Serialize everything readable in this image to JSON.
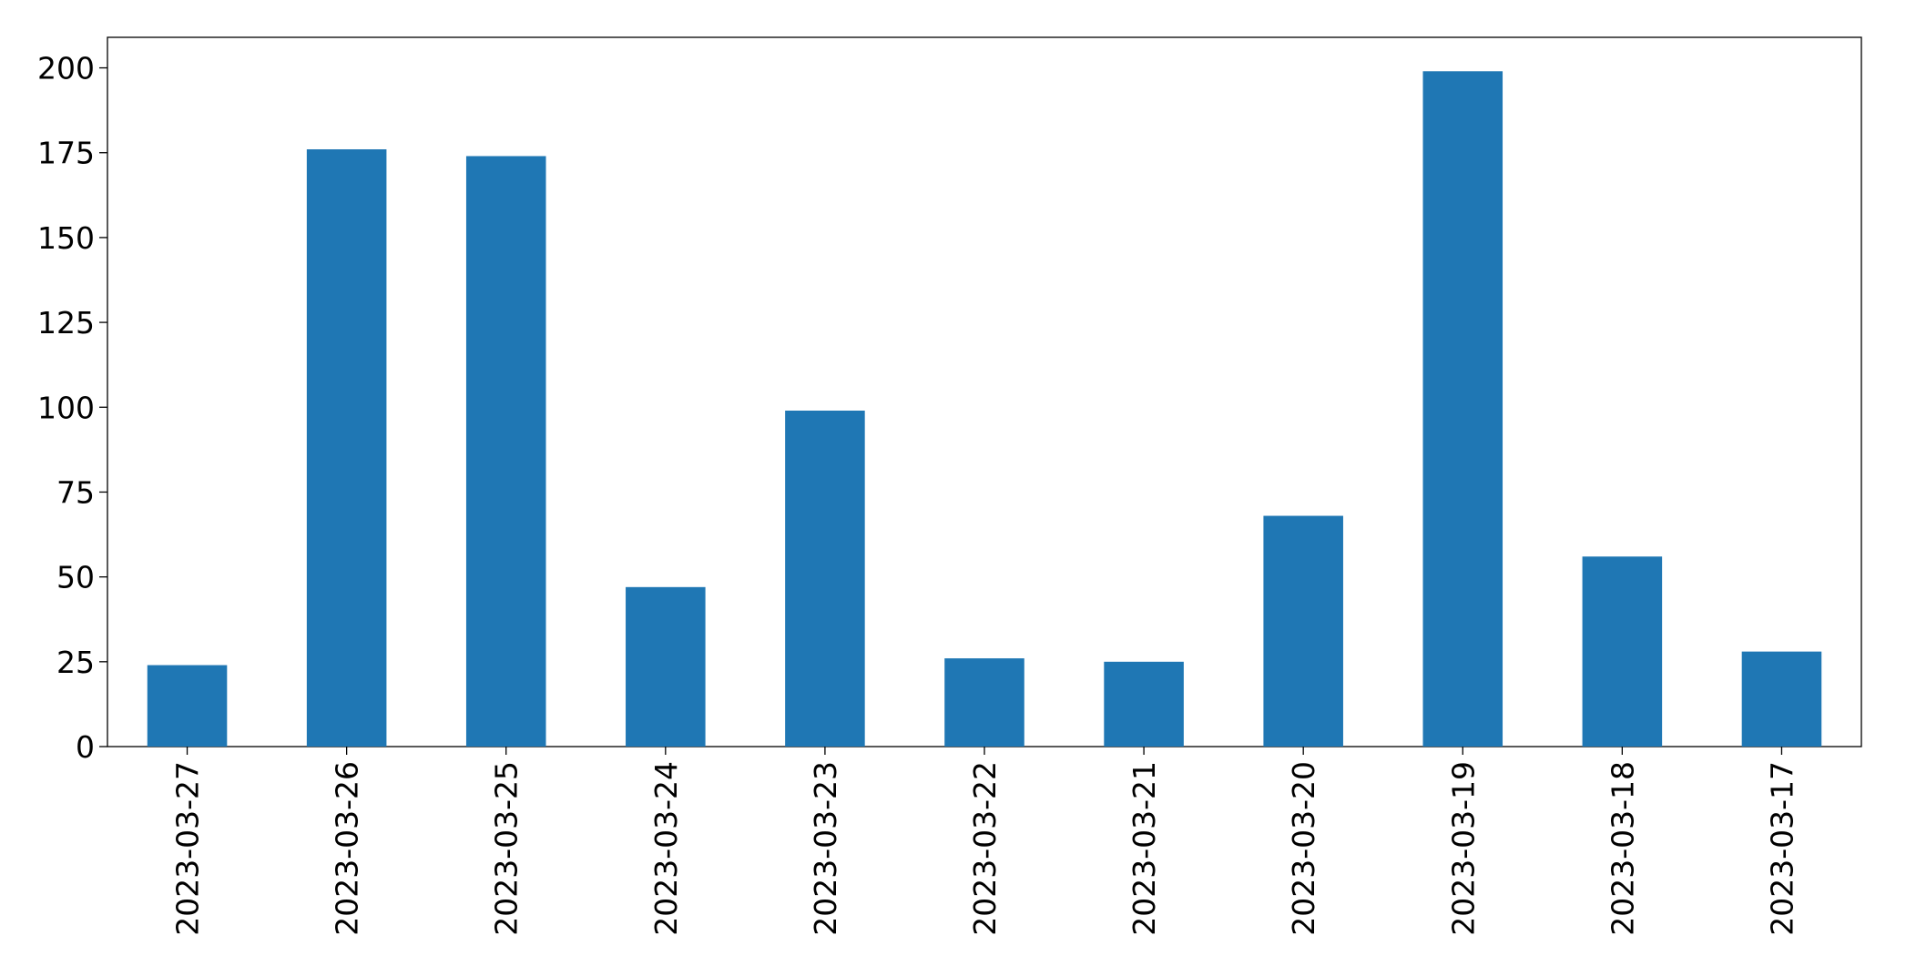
{
  "chart_data": {
    "type": "bar",
    "categories": [
      "2023-03-27",
      "2023-03-26",
      "2023-03-25",
      "2023-03-24",
      "2023-03-23",
      "2023-03-22",
      "2023-03-21",
      "2023-03-20",
      "2023-03-19",
      "2023-03-18",
      "2023-03-17"
    ],
    "values": [
      24,
      176,
      174,
      47,
      99,
      26,
      25,
      68,
      199,
      56,
      28
    ],
    "color": "#1f77b4",
    "ylim": [
      0,
      209
    ],
    "yticks": [
      0,
      25,
      50,
      75,
      100,
      125,
      150,
      175,
      200
    ],
    "grid": false
  }
}
